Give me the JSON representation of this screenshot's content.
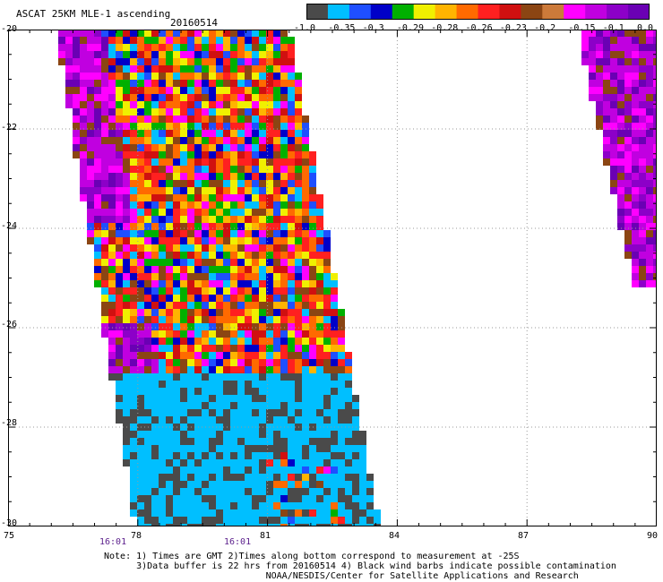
{
  "header": {
    "title": "ASCAT 25KM MLE-1 ascending",
    "date": "20160514"
  },
  "legend": {
    "colors": [
      "#4a4a4a",
      "#00bfff",
      "#1f4fff",
      "#0000c8",
      "#00b000",
      "#f0f000",
      "#ffb400",
      "#ff6a00",
      "#ff2020",
      "#d01010",
      "#8b4513",
      "#cc7a3a",
      "#ff00ff",
      "#c000e0",
      "#8c00c8",
      "#6a00b4"
    ],
    "tick_labels": [
      "-1.0",
      "-0.35",
      "-0.3",
      "-0.29",
      "-0.28",
      "-0.26",
      "-0.23",
      "-0.2",
      "-0.15",
      "-0.1",
      "0.0"
    ]
  },
  "axes": {
    "x_ticks": [
      "75",
      "78",
      "81",
      "84",
      "87",
      "90"
    ],
    "y_ticks": [
      "-20",
      "-22",
      "-24",
      "-26",
      "-28",
      "-30"
    ],
    "time_labels": [
      "16:01",
      "16:01"
    ]
  },
  "notes": [
    "Note: 1) Times are GMT 2)Times along bottom correspond to measurement at -25S",
    "      3)Data buffer is 22 hrs from 20160514 4) Black wind barbs indicate possible contamination",
    "                              NOAA/NESDIS/Center for Satellite Applications and Research"
  ],
  "colors": {
    "grid": "#9a9a9a",
    "time_label": "#5b1f8c"
  }
}
